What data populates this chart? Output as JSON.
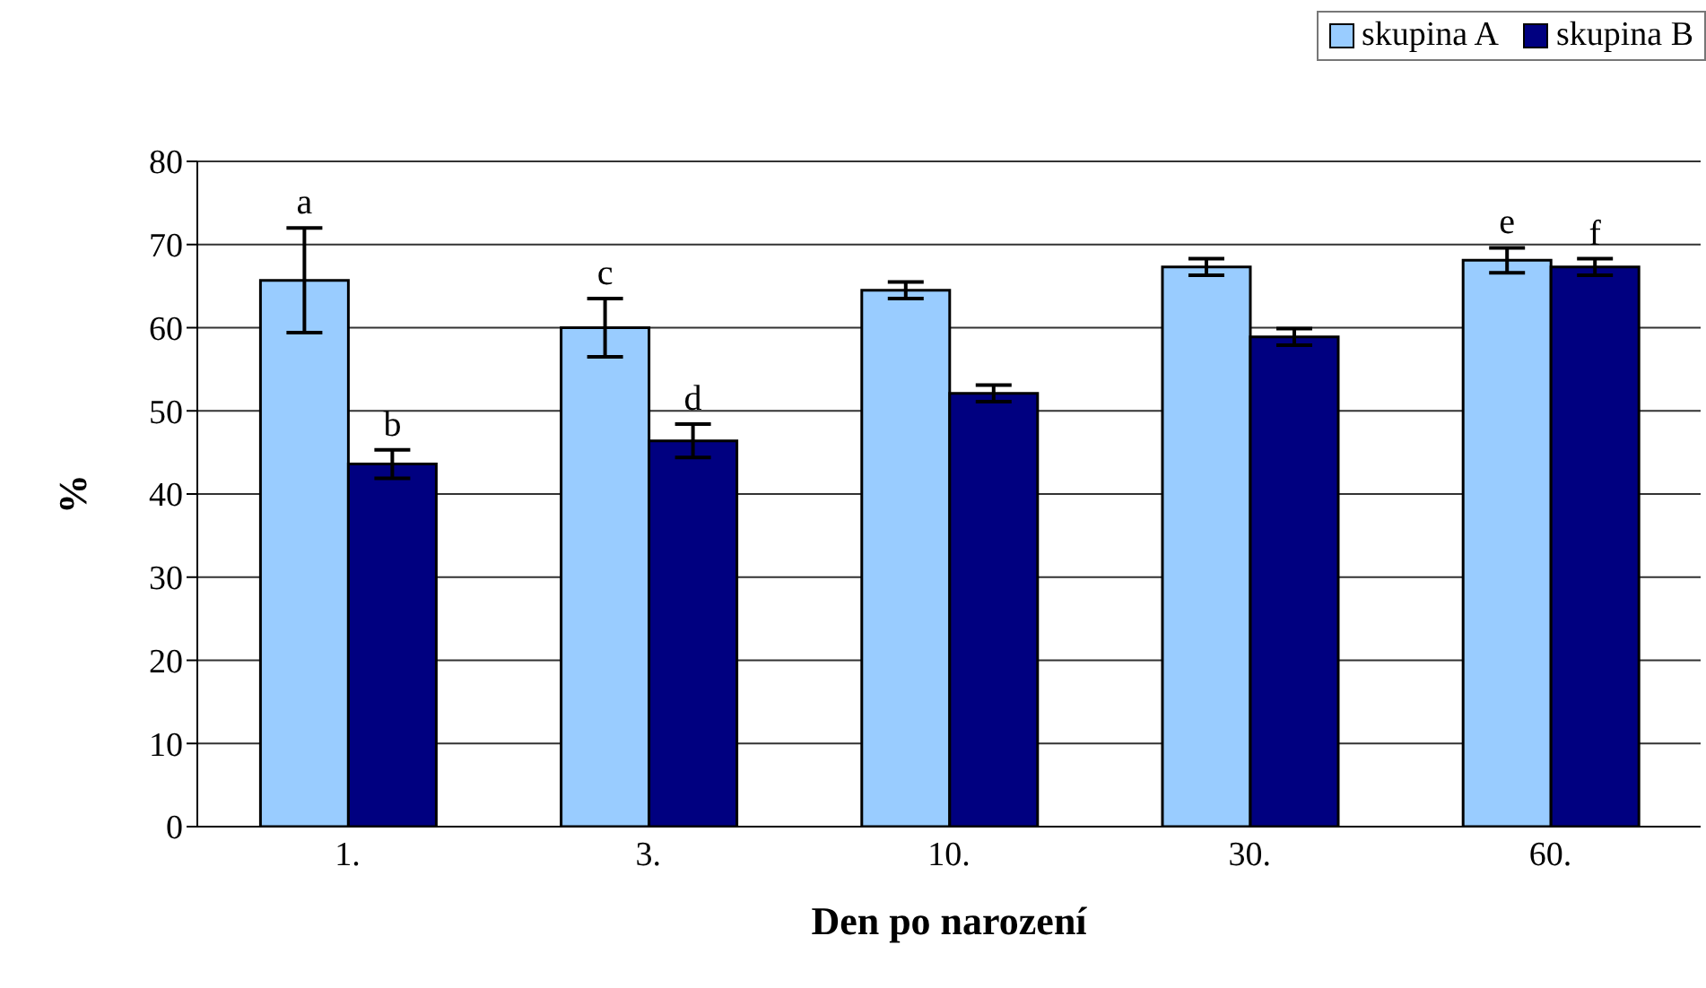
{
  "chart_data": {
    "type": "bar",
    "xlabel": "Den po narození",
    "ylabel": "%",
    "categories": [
      "1.",
      "3.",
      "10.",
      "30.",
      "60."
    ],
    "series": [
      {
        "name": "skupina A",
        "color": "#99ccff",
        "values": [
          65.7,
          60,
          64.5,
          67.3,
          68.1
        ],
        "errors": [
          6.3,
          3.5,
          1,
          1,
          1.5
        ],
        "value_labels": [
          "a",
          "c",
          null,
          null,
          "e"
        ]
      },
      {
        "name": "skupina B",
        "color": "#000080",
        "values": [
          43.6,
          46.4,
          52.1,
          58.9,
          67.3
        ],
        "errors": [
          1.7,
          2,
          1,
          1,
          1
        ],
        "value_labels": [
          "b",
          "d",
          null,
          null,
          "f"
        ]
      }
    ],
    "ylim": [
      0,
      80
    ],
    "yticks": [
      0,
      10,
      20,
      30,
      40,
      50,
      60,
      70,
      80
    ],
    "grid": "y",
    "legend": "top right"
  }
}
